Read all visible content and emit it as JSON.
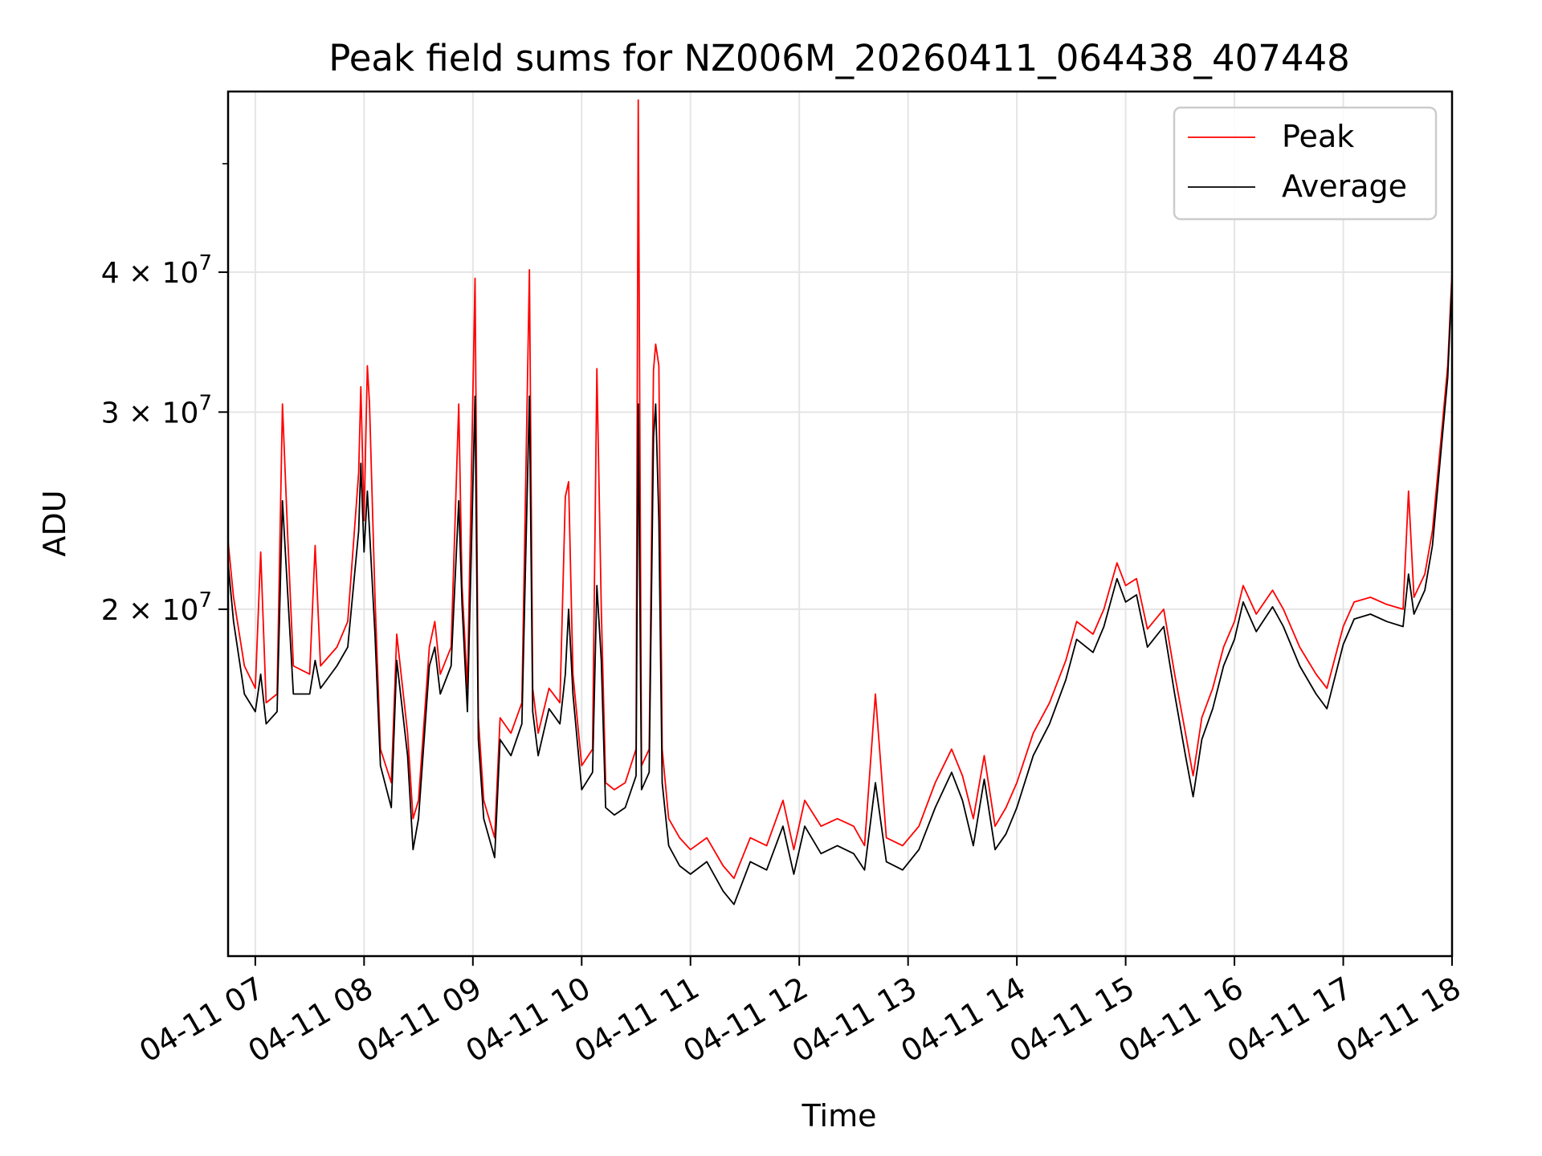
{
  "chart_data": {
    "type": "line",
    "title": "Peak field sums for NZ006M_20260411_064438_407448",
    "xlabel": "Time",
    "ylabel": "ADU",
    "yscale": "log",
    "grid": true,
    "legend_position": "top-right",
    "x_unit": "hours",
    "xlim": [
      6.75,
      18.0
    ],
    "ylim": [
      9800000.0,
      58000000.0
    ],
    "x_ticks": [
      {
        "value": 7,
        "label": "04-11 07"
      },
      {
        "value": 8,
        "label": "04-11 08"
      },
      {
        "value": 9,
        "label": "04-11 09"
      },
      {
        "value": 10,
        "label": "04-11 10"
      },
      {
        "value": 11,
        "label": "04-11 11"
      },
      {
        "value": 12,
        "label": "04-11 12"
      },
      {
        "value": 13,
        "label": "04-11 13"
      },
      {
        "value": 14,
        "label": "04-11 14"
      },
      {
        "value": 15,
        "label": "04-11 15"
      },
      {
        "value": 16,
        "label": "04-11 16"
      },
      {
        "value": 17,
        "label": "04-11 17"
      },
      {
        "value": 18,
        "label": "04-11 18"
      }
    ],
    "y_ticks": [
      {
        "value": 20000000,
        "mantissa": "2",
        "exponent": "7"
      },
      {
        "value": 30000000,
        "mantissa": "3",
        "exponent": "7"
      },
      {
        "value": 40000000,
        "mantissa": "4",
        "exponent": "7"
      }
    ],
    "y_minor_ticks": [
      50000000
    ],
    "series": [
      {
        "name": "Peak",
        "color": "#ff0000",
        "points": [
          [
            6.75,
            23000000
          ],
          [
            6.8,
            20500000
          ],
          [
            6.9,
            17800000
          ],
          [
            7.0,
            17000000
          ],
          [
            7.05,
            22500000
          ],
          [
            7.1,
            16500000
          ],
          [
            7.2,
            16800000
          ],
          [
            7.25,
            30500000
          ],
          [
            7.3,
            23000000
          ],
          [
            7.35,
            17800000
          ],
          [
            7.5,
            17500000
          ],
          [
            7.55,
            22800000
          ],
          [
            7.6,
            17800000
          ],
          [
            7.75,
            18500000
          ],
          [
            7.85,
            19500000
          ],
          [
            7.95,
            26500000
          ],
          [
            7.97,
            31600000
          ],
          [
            8.0,
            24000000
          ],
          [
            8.03,
            33000000
          ],
          [
            8.05,
            30500000
          ],
          [
            8.1,
            20500000
          ],
          [
            8.15,
            15000000
          ],
          [
            8.25,
            14000000
          ],
          [
            8.3,
            19000000
          ],
          [
            8.4,
            15500000
          ],
          [
            8.45,
            13000000
          ],
          [
            8.5,
            13500000
          ],
          [
            8.6,
            18500000
          ],
          [
            8.65,
            19500000
          ],
          [
            8.7,
            17500000
          ],
          [
            8.8,
            18500000
          ],
          [
            8.87,
            30500000
          ],
          [
            8.9,
            21000000
          ],
          [
            8.95,
            17000000
          ],
          [
            9.02,
            39500000
          ],
          [
            9.05,
            16000000
          ],
          [
            9.1,
            13500000
          ],
          [
            9.2,
            12500000
          ],
          [
            9.25,
            16000000
          ],
          [
            9.35,
            15500000
          ],
          [
            9.45,
            16500000
          ],
          [
            9.52,
            40200000
          ],
          [
            9.55,
            17000000
          ],
          [
            9.6,
            15500000
          ],
          [
            9.7,
            17000000
          ],
          [
            9.8,
            16500000
          ],
          [
            9.85,
            25200000
          ],
          [
            9.88,
            26000000
          ],
          [
            9.92,
            17500000
          ],
          [
            10.0,
            14500000
          ],
          [
            10.1,
            15000000
          ],
          [
            10.14,
            32800000
          ],
          [
            10.18,
            20000000
          ],
          [
            10.22,
            14000000
          ],
          [
            10.3,
            13800000
          ],
          [
            10.4,
            14000000
          ],
          [
            10.5,
            15000000
          ],
          [
            10.52,
            57000000
          ],
          [
            10.55,
            14500000
          ],
          [
            10.62,
            15000000
          ],
          [
            10.66,
            32700000
          ],
          [
            10.68,
            34500000
          ],
          [
            10.71,
            33000000
          ],
          [
            10.74,
            15000000
          ],
          [
            10.8,
            13000000
          ],
          [
            10.9,
            12500000
          ],
          [
            11.0,
            12200000
          ],
          [
            11.15,
            12500000
          ],
          [
            11.3,
            11800000
          ],
          [
            11.4,
            11500000
          ],
          [
            11.55,
            12500000
          ],
          [
            11.7,
            12300000
          ],
          [
            11.85,
            13500000
          ],
          [
            11.95,
            12200000
          ],
          [
            12.05,
            13500000
          ],
          [
            12.2,
            12800000
          ],
          [
            12.35,
            13000000
          ],
          [
            12.5,
            12800000
          ],
          [
            12.6,
            12300000
          ],
          [
            12.7,
            16800000
          ],
          [
            12.8,
            12500000
          ],
          [
            12.95,
            12300000
          ],
          [
            13.1,
            12800000
          ],
          [
            13.25,
            14000000
          ],
          [
            13.4,
            15000000
          ],
          [
            13.5,
            14200000
          ],
          [
            13.6,
            13000000
          ],
          [
            13.7,
            14800000
          ],
          [
            13.8,
            12800000
          ],
          [
            13.9,
            13300000
          ],
          [
            14.0,
            14000000
          ],
          [
            14.15,
            15500000
          ],
          [
            14.3,
            16500000
          ],
          [
            14.45,
            18000000
          ],
          [
            14.55,
            19500000
          ],
          [
            14.7,
            19000000
          ],
          [
            14.8,
            20000000
          ],
          [
            14.92,
            22000000
          ],
          [
            15.0,
            21000000
          ],
          [
            15.1,
            21300000
          ],
          [
            15.2,
            19200000
          ],
          [
            15.35,
            20000000
          ],
          [
            15.45,
            17500000
          ],
          [
            15.55,
            15500000
          ],
          [
            15.62,
            14200000
          ],
          [
            15.7,
            16000000
          ],
          [
            15.8,
            17000000
          ],
          [
            15.9,
            18500000
          ],
          [
            16.0,
            19500000
          ],
          [
            16.08,
            21000000
          ],
          [
            16.2,
            19800000
          ],
          [
            16.35,
            20800000
          ],
          [
            16.45,
            20000000
          ],
          [
            16.6,
            18500000
          ],
          [
            16.75,
            17500000
          ],
          [
            16.85,
            17000000
          ],
          [
            17.0,
            19300000
          ],
          [
            17.1,
            20300000
          ],
          [
            17.25,
            20500000
          ],
          [
            17.4,
            20200000
          ],
          [
            17.55,
            20000000
          ],
          [
            17.6,
            25500000
          ],
          [
            17.65,
            20500000
          ],
          [
            17.75,
            21500000
          ],
          [
            17.82,
            23500000
          ],
          [
            17.9,
            28500000
          ],
          [
            17.96,
            33000000
          ],
          [
            18.0,
            40000000
          ]
        ]
      },
      {
        "name": "Average",
        "color": "#000000",
        "points": [
          [
            6.75,
            22000000
          ],
          [
            6.8,
            19500000
          ],
          [
            6.9,
            16800000
          ],
          [
            7.0,
            16200000
          ],
          [
            7.05,
            17500000
          ],
          [
            7.1,
            15800000
          ],
          [
            7.2,
            16200000
          ],
          [
            7.25,
            25000000
          ],
          [
            7.3,
            20500000
          ],
          [
            7.35,
            16800000
          ],
          [
            7.5,
            16800000
          ],
          [
            7.55,
            18000000
          ],
          [
            7.6,
            17000000
          ],
          [
            7.75,
            17800000
          ],
          [
            7.85,
            18500000
          ],
          [
            7.95,
            23500000
          ],
          [
            7.97,
            27000000
          ],
          [
            8.0,
            22500000
          ],
          [
            8.03,
            25500000
          ],
          [
            8.05,
            23500000
          ],
          [
            8.1,
            19000000
          ],
          [
            8.15,
            14500000
          ],
          [
            8.25,
            13300000
          ],
          [
            8.3,
            18000000
          ],
          [
            8.4,
            14800000
          ],
          [
            8.45,
            12200000
          ],
          [
            8.5,
            13000000
          ],
          [
            8.6,
            17800000
          ],
          [
            8.65,
            18500000
          ],
          [
            8.7,
            16800000
          ],
          [
            8.8,
            17800000
          ],
          [
            8.87,
            25000000
          ],
          [
            8.9,
            20200000
          ],
          [
            8.95,
            16200000
          ],
          [
            9.02,
            31000000
          ],
          [
            9.05,
            15300000
          ],
          [
            9.1,
            13000000
          ],
          [
            9.2,
            12000000
          ],
          [
            9.25,
            15300000
          ],
          [
            9.35,
            14800000
          ],
          [
            9.45,
            15800000
          ],
          [
            9.52,
            31000000
          ],
          [
            9.55,
            16200000
          ],
          [
            9.6,
            14800000
          ],
          [
            9.7,
            16300000
          ],
          [
            9.8,
            15800000
          ],
          [
            9.85,
            17500000
          ],
          [
            9.88,
            20000000
          ],
          [
            9.92,
            16800000
          ],
          [
            10.0,
            13800000
          ],
          [
            10.1,
            14300000
          ],
          [
            10.14,
            21000000
          ],
          [
            10.18,
            18000000
          ],
          [
            10.22,
            13300000
          ],
          [
            10.3,
            13100000
          ],
          [
            10.4,
            13300000
          ],
          [
            10.5,
            14200000
          ],
          [
            10.52,
            30500000
          ],
          [
            10.55,
            13800000
          ],
          [
            10.62,
            14300000
          ],
          [
            10.66,
            28500000
          ],
          [
            10.68,
            30500000
          ],
          [
            10.71,
            24000000
          ],
          [
            10.74,
            14000000
          ],
          [
            10.8,
            12300000
          ],
          [
            10.9,
            11800000
          ],
          [
            11.0,
            11600000
          ],
          [
            11.15,
            11900000
          ],
          [
            11.3,
            11200000
          ],
          [
            11.4,
            10900000
          ],
          [
            11.55,
            11900000
          ],
          [
            11.7,
            11700000
          ],
          [
            11.85,
            12800000
          ],
          [
            11.95,
            11600000
          ],
          [
            12.05,
            12800000
          ],
          [
            12.2,
            12100000
          ],
          [
            12.35,
            12300000
          ],
          [
            12.5,
            12100000
          ],
          [
            12.6,
            11700000
          ],
          [
            12.7,
            14000000
          ],
          [
            12.8,
            11900000
          ],
          [
            12.95,
            11700000
          ],
          [
            13.1,
            12200000
          ],
          [
            13.25,
            13300000
          ],
          [
            13.4,
            14300000
          ],
          [
            13.5,
            13500000
          ],
          [
            13.6,
            12300000
          ],
          [
            13.7,
            14100000
          ],
          [
            13.8,
            12200000
          ],
          [
            13.9,
            12600000
          ],
          [
            14.0,
            13300000
          ],
          [
            14.15,
            14800000
          ],
          [
            14.3,
            15800000
          ],
          [
            14.45,
            17300000
          ],
          [
            14.55,
            18800000
          ],
          [
            14.7,
            18300000
          ],
          [
            14.8,
            19300000
          ],
          [
            14.92,
            21300000
          ],
          [
            15.0,
            20300000
          ],
          [
            15.1,
            20600000
          ],
          [
            15.2,
            18500000
          ],
          [
            15.35,
            19300000
          ],
          [
            15.45,
            16800000
          ],
          [
            15.55,
            14800000
          ],
          [
            15.62,
            13600000
          ],
          [
            15.7,
            15300000
          ],
          [
            15.8,
            16300000
          ],
          [
            15.9,
            17800000
          ],
          [
            16.0,
            18800000
          ],
          [
            16.08,
            20300000
          ],
          [
            16.2,
            19100000
          ],
          [
            16.35,
            20100000
          ],
          [
            16.45,
            19300000
          ],
          [
            16.6,
            17800000
          ],
          [
            16.75,
            16800000
          ],
          [
            16.85,
            16300000
          ],
          [
            17.0,
            18600000
          ],
          [
            17.1,
            19600000
          ],
          [
            17.25,
            19800000
          ],
          [
            17.4,
            19500000
          ],
          [
            17.55,
            19300000
          ],
          [
            17.6,
            21500000
          ],
          [
            17.65,
            19800000
          ],
          [
            17.75,
            20800000
          ],
          [
            17.82,
            22800000
          ],
          [
            17.9,
            27800000
          ],
          [
            17.96,
            32200000
          ],
          [
            18.0,
            39500000
          ]
        ]
      }
    ]
  }
}
